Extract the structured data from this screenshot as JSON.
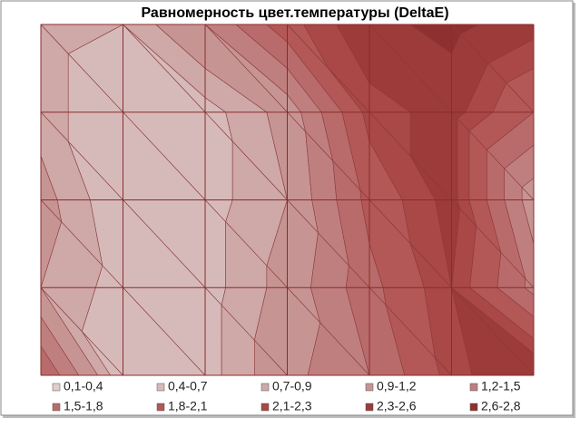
{
  "chart_data": {
    "type": "contour",
    "title": "Равномерность цвет.температуры (DeltaE)",
    "z": [
      [
        0.8,
        0.7,
        1.2,
        2.0,
        2.5,
        2.7,
        2.4
      ],
      [
        0.8,
        0.5,
        0.6,
        1.0,
        2.2,
        2.4,
        1.8
      ],
      [
        1.0,
        0.5,
        0.6,
        0.9,
        1.9,
        2.4,
        1.0
      ],
      [
        0.9,
        0.6,
        0.6,
        1.0,
        1.7,
        2.3,
        1.4
      ],
      [
        1.8,
        0.5,
        0.6,
        1.1,
        1.5,
        2.2,
        2.6
      ]
    ],
    "bands": [
      {
        "label": "0,1-0,4",
        "min": 0.1,
        "max": 0.4,
        "color": "#e2cccc"
      },
      {
        "label": "0,4-0,7",
        "min": 0.4,
        "max": 0.7,
        "color": "#d6baba"
      },
      {
        "label": "0,7-0,9",
        "min": 0.7,
        "max": 0.9,
        "color": "#cfa8a8"
      },
      {
        "label": "0,9-1,2",
        "min": 0.9,
        "max": 1.2,
        "color": "#c79494"
      },
      {
        "label": "1,2-1,5",
        "min": 1.2,
        "max": 1.5,
        "color": "#c07f7f"
      },
      {
        "label": "1,5-1,8",
        "min": 1.5,
        "max": 1.8,
        "color": "#b96b6b"
      },
      {
        "label": "1,8-2,1",
        "min": 1.8,
        "max": 2.1,
        "color": "#b35757"
      },
      {
        "label": "2,1-2,3",
        "min": 2.1,
        "max": 2.3,
        "color": "#aa4747"
      },
      {
        "label": "2,3-2,6",
        "min": 2.3,
        "max": 2.6,
        "color": "#9d3a3a"
      },
      {
        "label": "2,6-2,8",
        "min": 2.6,
        "max": 2.8,
        "color": "#8f3030"
      }
    ]
  }
}
